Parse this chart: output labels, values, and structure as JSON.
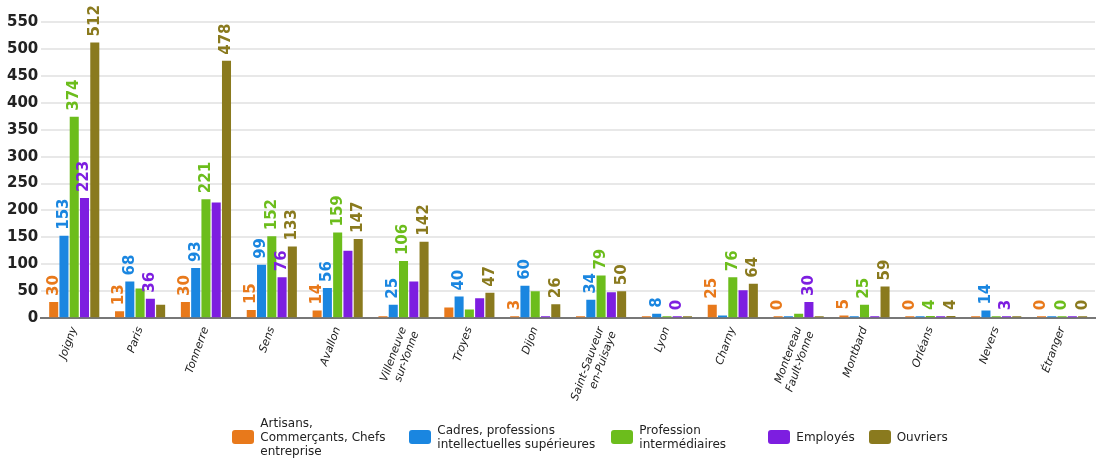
{
  "chart_data": {
    "type": "bar",
    "categories": [
      "Joigny",
      "Paris",
      "Tonnerre",
      "Sens",
      "Avallon",
      "Villeneuve sur-Yonne",
      "Troyes",
      "Dijon",
      "Saint-Sauveur en-Puisaye",
      "Lyon",
      "Charny",
      "Montereau Fault-Yonne",
      "Montbard",
      "Orléans",
      "Nevers",
      "Étranger"
    ],
    "series": [
      {
        "name": "Artisans, Commerçants, Chefs entreprise",
        "color": "#e8791b",
        "values": [
          30,
          13,
          30,
          15,
          14,
          0,
          20,
          3,
          0,
          0,
          25,
          0,
          5,
          0,
          0,
          0
        ],
        "value_labels": [
          "30",
          "13",
          "30",
          "15",
          "14",
          null,
          null,
          "3",
          null,
          null,
          "25",
          "0",
          "5",
          "0",
          null,
          "0"
        ]
      },
      {
        "name": "Cadres, professions intellectuelles supérieures",
        "color": "#1a86e0",
        "values": [
          153,
          68,
          93,
          99,
          56,
          25,
          40,
          60,
          34,
          8,
          5,
          0,
          0,
          0,
          14,
          0
        ],
        "value_labels": [
          "153",
          "68",
          "93",
          "99",
          "56",
          "25",
          "40",
          "60",
          "34",
          "8",
          null,
          null,
          null,
          null,
          "14",
          null
        ]
      },
      {
        "name": "Profession intermédiaires",
        "color": "#6cbd1c",
        "values": [
          374,
          55,
          221,
          152,
          159,
          106,
          16,
          50,
          79,
          3,
          76,
          8,
          25,
          4,
          0,
          0
        ],
        "value_labels": [
          "374",
          null,
          "221",
          "152",
          "159",
          "106",
          null,
          null,
          "79",
          null,
          "76",
          null,
          "25",
          "4",
          null,
          "0"
        ]
      },
      {
        "name": "Employés",
        "color": "#7d1ee0",
        "values": [
          223,
          36,
          215,
          76,
          125,
          68,
          37,
          0,
          48,
          0,
          52,
          30,
          0,
          0,
          3,
          0
        ],
        "value_labels": [
          "223",
          "36",
          null,
          "76",
          null,
          null,
          null,
          null,
          null,
          "0",
          null,
          "30",
          null,
          null,
          "3",
          null
        ]
      },
      {
        "name": "Ouvriers",
        "color": "#8a7a1e",
        "values": [
          512,
          25,
          478,
          133,
          147,
          142,
          47,
          26,
          50,
          0,
          64,
          0,
          59,
          4,
          0,
          0
        ],
        "value_labels": [
          "512",
          null,
          "478",
          "133",
          "147",
          "142",
          "47",
          "26",
          "50",
          null,
          "64",
          null,
          "59",
          "4",
          null,
          "0"
        ]
      }
    ],
    "ylim": [
      0,
      550
    ],
    "yticks": [
      0,
      50,
      100,
      150,
      200,
      250,
      300,
      350,
      400,
      450,
      500,
      550
    ],
    "grid": "y",
    "legend": "bottom"
  }
}
